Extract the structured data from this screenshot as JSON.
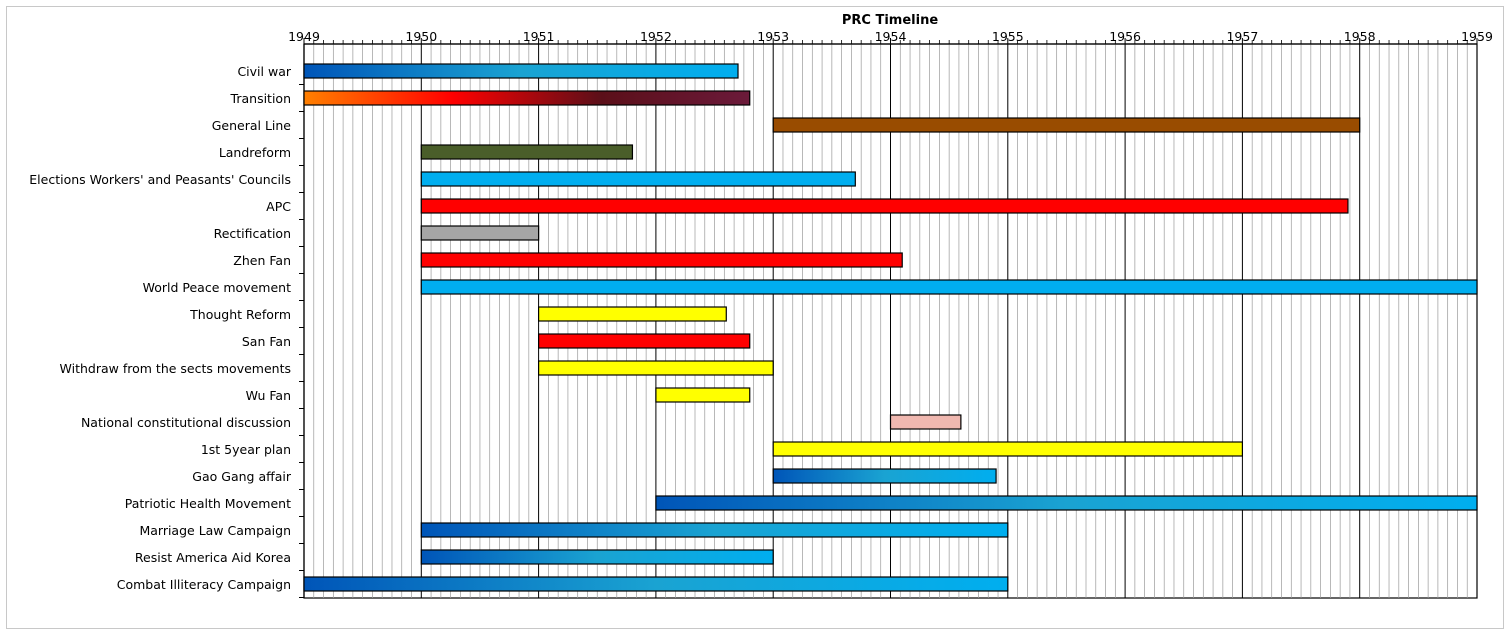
{
  "chart_data": {
    "type": "bar",
    "orientation": "horizontal",
    "subtype": "gantt",
    "title": "PRC Timeline",
    "xlim": [
      1949,
      1959
    ],
    "x_ticks": [
      1949,
      1950,
      1951,
      1952,
      1953,
      1954,
      1955,
      1956,
      1957,
      1958,
      1959
    ],
    "minor_ticks_per_year": 12,
    "x_axis_position": "top",
    "grid": true,
    "legend": "none",
    "series": [
      {
        "label": "Civil war",
        "start": 1949.0,
        "end": 1952.7,
        "colors": [
          "#0055b8",
          "#1aa3d2",
          "#00aeef"
        ]
      },
      {
        "label": "Transition",
        "start": 1949.0,
        "end": 1952.8,
        "colors": [
          "#ff8000",
          "#ff0000",
          "#5b0f19",
          "#6b1a3a"
        ]
      },
      {
        "label": "General Line",
        "start": 1953.0,
        "end": 1958.0,
        "colors": [
          "#994c00"
        ]
      },
      {
        "label": "Landreform",
        "start": 1950.0,
        "end": 1951.8,
        "colors": [
          "#4a5e2a"
        ]
      },
      {
        "label": "Elections Workers' and Peasants' Councils",
        "start": 1950.0,
        "end": 1953.7,
        "colors": [
          "#00aeef"
        ]
      },
      {
        "label": "APC",
        "start": 1950.0,
        "end": 1957.9,
        "colors": [
          "#ff0000"
        ]
      },
      {
        "label": "Rectification",
        "start": 1950.0,
        "end": 1951.0,
        "colors": [
          "#a6a6a6"
        ]
      },
      {
        "label": "Zhen Fan",
        "start": 1950.0,
        "end": 1954.1,
        "colors": [
          "#ff0000"
        ]
      },
      {
        "label": "World Peace movement",
        "start": 1950.0,
        "end": 1959.0,
        "colors": [
          "#00aeef"
        ]
      },
      {
        "label": "Thought Reform",
        "start": 1951.0,
        "end": 1952.6,
        "colors": [
          "#ffff00"
        ]
      },
      {
        "label": "San Fan",
        "start": 1951.0,
        "end": 1952.8,
        "colors": [
          "#ff0000"
        ]
      },
      {
        "label": "Withdraw from the sects movements",
        "start": 1951.0,
        "end": 1953.0,
        "colors": [
          "#ffff00"
        ]
      },
      {
        "label": "Wu Fan",
        "start": 1952.0,
        "end": 1952.8,
        "colors": [
          "#ffff00"
        ]
      },
      {
        "label": "National constitutional discussion",
        "start": 1954.0,
        "end": 1954.6,
        "colors": [
          "#f0b8b0"
        ]
      },
      {
        "label": "1st 5year plan",
        "start": 1953.0,
        "end": 1957.0,
        "colors": [
          "#ffff00"
        ]
      },
      {
        "label": "Gao Gang affair",
        "start": 1953.0,
        "end": 1954.9,
        "colors": [
          "#0055b8",
          "#1aa3d2",
          "#00aeef"
        ]
      },
      {
        "label": "Patriotic Health Movement",
        "start": 1952.0,
        "end": 1959.0,
        "colors": [
          "#0055b8",
          "#1aa3d2",
          "#00aeef"
        ]
      },
      {
        "label": "Marriage Law Campaign",
        "start": 1950.0,
        "end": 1955.0,
        "colors": [
          "#0055b8",
          "#1aa3d2",
          "#00aeef"
        ]
      },
      {
        "label": "Resist America Aid Korea",
        "start": 1950.0,
        "end": 1953.0,
        "colors": [
          "#0055b8",
          "#1aa3d2",
          "#00aeef"
        ]
      },
      {
        "label": "Combat Illiteracy Campaign",
        "start": 1949.0,
        "end": 1955.0,
        "colors": [
          "#0055b8",
          "#1aa3d2",
          "#00aeef"
        ]
      }
    ]
  }
}
